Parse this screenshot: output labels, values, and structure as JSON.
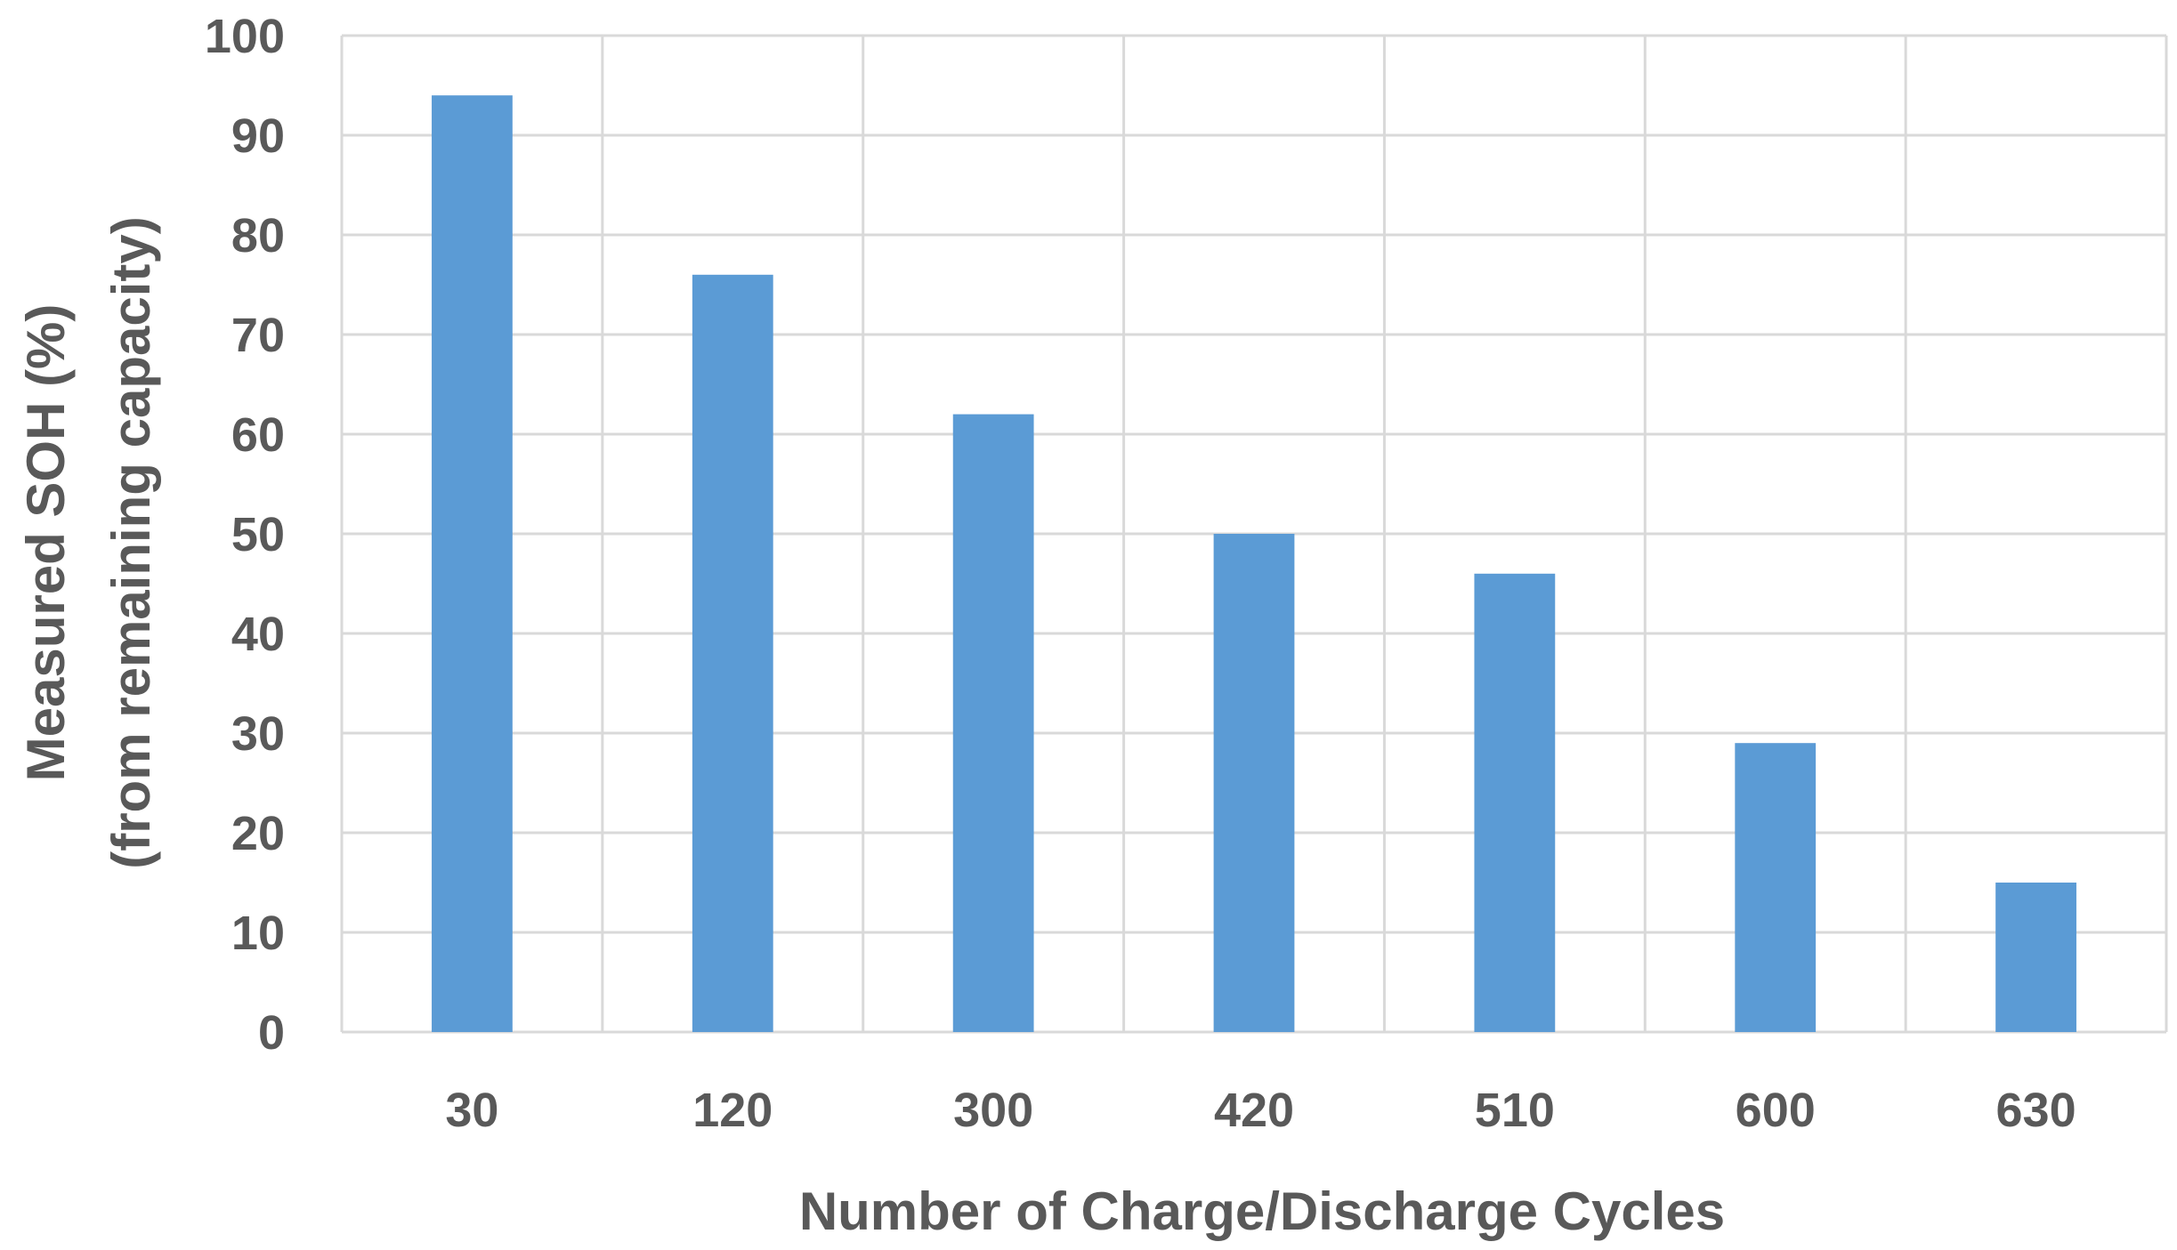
{
  "chart_data": {
    "type": "bar",
    "categories": [
      "30",
      "120",
      "300",
      "420",
      "510",
      "600",
      "630"
    ],
    "values": [
      94,
      76,
      62,
      50,
      46,
      29,
      15
    ],
    "title": "",
    "xlabel": "Number of Charge/Discharge Cycles",
    "ylabel": [
      "Measured  SOH (%)",
      "(from remaining capacity)"
    ],
    "ylim": [
      0,
      100
    ],
    "yticks": [
      "0",
      "10",
      "20",
      "30",
      "40",
      "50",
      "60",
      "70",
      "80",
      "90",
      "100"
    ],
    "grid": true,
    "legend": "none",
    "bar_color": "#5b9bd5"
  }
}
